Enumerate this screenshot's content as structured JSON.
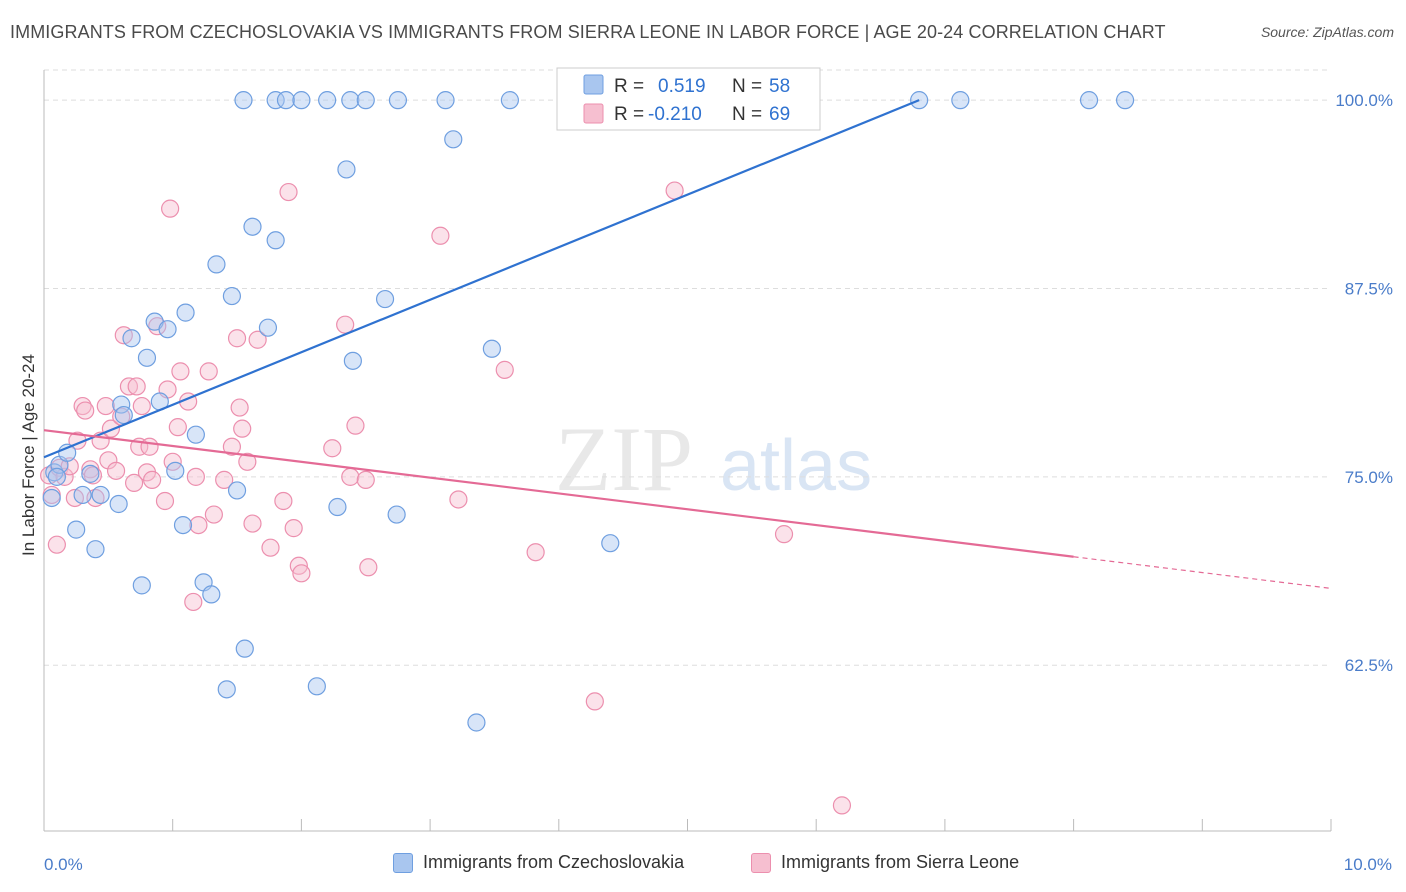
{
  "title": "IMMIGRANTS FROM CZECHOSLOVAKIA VS IMMIGRANTS FROM SIERRA LEONE IN LABOR FORCE | AGE 20-24 CORRELATION CHART",
  "source": "Source: ZipAtlas.com",
  "watermark": {
    "zip": "ZIP",
    "atlas": "atlas"
  },
  "colors": {
    "blue_fill": "#a9c6ef",
    "blue_stroke": "#6f9fe0",
    "blue_line": "#2f72d0",
    "pink_fill": "#f6bfd0",
    "pink_stroke": "#ec8fae",
    "pink_line": "#e46a95",
    "tick_text": "#4a7cc9",
    "grid": "#dddddd"
  },
  "legend": {
    "rows": [
      {
        "r_label": "R =",
        "r_value": "0.519",
        "n_label": "N =",
        "n_value": "58"
      },
      {
        "r_label": "R =",
        "r_value": "-0.210",
        "n_label": "N =",
        "n_value": "69"
      }
    ]
  },
  "chart_data": {
    "type": "scatter",
    "ylabel": "In Labor Force | Age 20-24",
    "xlim": [
      0,
      10
    ],
    "ylim": [
      51.5,
      102
    ],
    "x_tick_labels": [
      "0.0%",
      "10.0%"
    ],
    "y_ticks": [
      62.5,
      75.0,
      87.5,
      100.0
    ],
    "y_tick_labels": [
      "62.5%",
      "75.0%",
      "87.5%",
      "100.0%"
    ],
    "grid": "horizontal dashed",
    "series": [
      {
        "name": "Immigrants from Czechoslovakia",
        "color": "blue",
        "trend": {
          "x": [
            0.0,
            6.8
          ],
          "y": [
            76.3,
            100.0
          ]
        },
        "points": [
          [
            0.06,
            73.6
          ],
          [
            0.08,
            75.3
          ],
          [
            0.12,
            75.8
          ],
          [
            0.18,
            76.6
          ],
          [
            0.25,
            71.5
          ],
          [
            0.3,
            73.8
          ],
          [
            0.36,
            75.2
          ],
          [
            0.4,
            70.2
          ],
          [
            0.44,
            73.8
          ],
          [
            0.58,
            73.2
          ],
          [
            0.6,
            79.8
          ],
          [
            0.62,
            79.1
          ],
          [
            0.68,
            84.2
          ],
          [
            0.76,
            67.8
          ],
          [
            0.8,
            82.9
          ],
          [
            0.86,
            85.3
          ],
          [
            0.9,
            80.0
          ],
          [
            0.96,
            84.8
          ],
          [
            1.02,
            75.4
          ],
          [
            1.08,
            71.8
          ],
          [
            1.1,
            85.9
          ],
          [
            1.18,
            77.8
          ],
          [
            1.24,
            68.0
          ],
          [
            1.3,
            67.2
          ],
          [
            1.34,
            89.1
          ],
          [
            1.42,
            60.9
          ],
          [
            1.46,
            87.0
          ],
          [
            1.5,
            74.1
          ],
          [
            1.56,
            63.6
          ],
          [
            1.62,
            91.6
          ],
          [
            1.74,
            84.9
          ],
          [
            1.8,
            90.7
          ],
          [
            2.12,
            61.1
          ],
          [
            2.28,
            73.0
          ],
          [
            2.35,
            95.4
          ],
          [
            2.4,
            82.7
          ],
          [
            2.65,
            86.8
          ],
          [
            2.74,
            72.5
          ],
          [
            3.18,
            97.4
          ],
          [
            3.36,
            58.7
          ],
          [
            3.48,
            83.5
          ],
          [
            4.4,
            70.6
          ],
          [
            1.55,
            100.0
          ],
          [
            1.8,
            100.0
          ],
          [
            1.88,
            100.0
          ],
          [
            2.0,
            100.0
          ],
          [
            2.2,
            100.0
          ],
          [
            2.38,
            100.0
          ],
          [
            2.5,
            100.0
          ],
          [
            2.75,
            100.0
          ],
          [
            3.12,
            100.0
          ],
          [
            3.62,
            100.0
          ],
          [
            5.58,
            100.0
          ],
          [
            6.8,
            100.0
          ],
          [
            7.12,
            100.0
          ],
          [
            8.12,
            100.0
          ],
          [
            8.4,
            100.0
          ],
          [
            0.1,
            75.0
          ]
        ]
      },
      {
        "name": "Immigrants from Sierra Leone",
        "color": "pink",
        "trend": {
          "x": [
            0.0,
            8.0
          ],
          "y": [
            78.1,
            69.7
          ]
        },
        "trend_dashed": {
          "x": [
            8.0,
            10.0
          ],
          "y": [
            69.7,
            67.6
          ]
        },
        "points": [
          [
            0.04,
            75.1
          ],
          [
            0.06,
            73.8
          ],
          [
            0.1,
            70.5
          ],
          [
            0.12,
            75.6
          ],
          [
            0.16,
            75.0
          ],
          [
            0.2,
            75.7
          ],
          [
            0.24,
            73.6
          ],
          [
            0.26,
            77.4
          ],
          [
            0.3,
            79.7
          ],
          [
            0.32,
            79.4
          ],
          [
            0.36,
            75.5
          ],
          [
            0.38,
            75.1
          ],
          [
            0.4,
            73.6
          ],
          [
            0.44,
            77.4
          ],
          [
            0.48,
            79.7
          ],
          [
            0.5,
            76.1
          ],
          [
            0.52,
            78.2
          ],
          [
            0.56,
            75.4
          ],
          [
            0.6,
            79.0
          ],
          [
            0.62,
            84.4
          ],
          [
            0.66,
            81.0
          ],
          [
            0.7,
            74.6
          ],
          [
            0.72,
            81.0
          ],
          [
            0.74,
            77.0
          ],
          [
            0.76,
            79.7
          ],
          [
            0.8,
            75.3
          ],
          [
            0.82,
            77.0
          ],
          [
            0.84,
            74.8
          ],
          [
            0.88,
            85.0
          ],
          [
            0.94,
            73.4
          ],
          [
            0.96,
            80.8
          ],
          [
            0.98,
            92.8
          ],
          [
            1.0,
            76.0
          ],
          [
            1.04,
            78.3
          ],
          [
            1.06,
            82.0
          ],
          [
            1.12,
            80.0
          ],
          [
            1.16,
            66.7
          ],
          [
            1.18,
            75.0
          ],
          [
            1.2,
            71.8
          ],
          [
            1.28,
            82.0
          ],
          [
            1.32,
            72.5
          ],
          [
            1.4,
            74.8
          ],
          [
            1.46,
            77.0
          ],
          [
            1.5,
            84.2
          ],
          [
            1.52,
            79.6
          ],
          [
            1.54,
            78.2
          ],
          [
            1.58,
            76.0
          ],
          [
            1.62,
            71.9
          ],
          [
            1.66,
            84.1
          ],
          [
            1.76,
            70.3
          ],
          [
            1.86,
            73.4
          ],
          [
            1.9,
            93.9
          ],
          [
            1.94,
            71.6
          ],
          [
            1.98,
            69.1
          ],
          [
            2.0,
            68.6
          ],
          [
            2.24,
            76.9
          ],
          [
            2.34,
            85.1
          ],
          [
            2.38,
            75.0
          ],
          [
            2.42,
            78.4
          ],
          [
            2.5,
            74.8
          ],
          [
            2.52,
            69.0
          ],
          [
            3.08,
            91.0
          ],
          [
            3.22,
            73.5
          ],
          [
            3.58,
            82.1
          ],
          [
            3.82,
            70.0
          ],
          [
            4.28,
            60.1
          ],
          [
            4.9,
            94.0
          ],
          [
            5.75,
            71.2
          ],
          [
            6.2,
            53.2
          ]
        ]
      }
    ]
  },
  "bottom_legend": [
    "Immigrants from Czechoslovakia",
    "Immigrants from Sierra Leone"
  ]
}
